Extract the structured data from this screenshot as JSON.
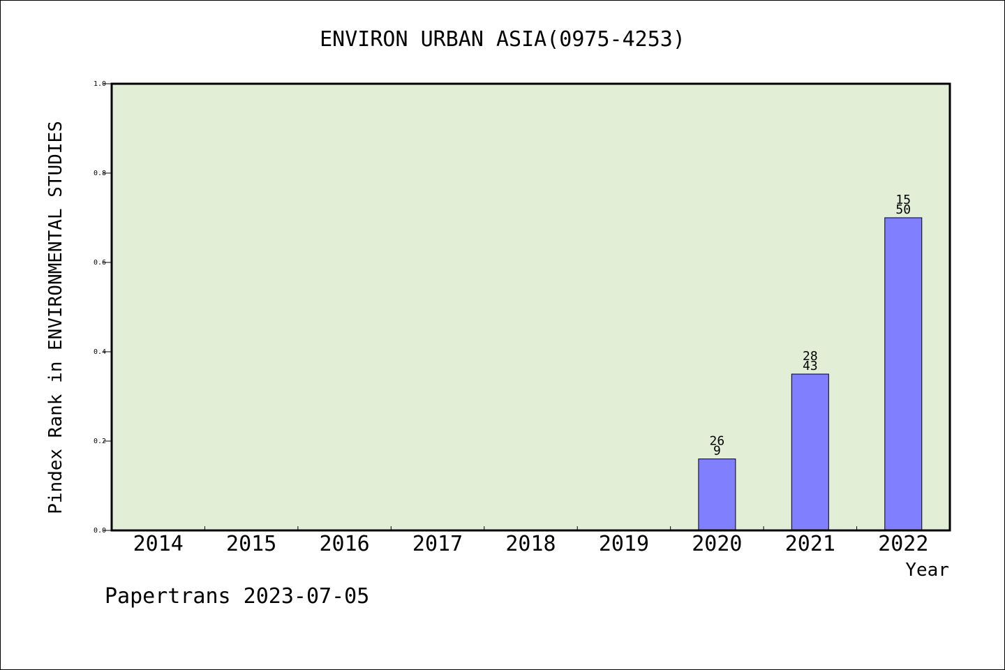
{
  "chart_data": {
    "type": "bar",
    "title": "ENVIRON URBAN ASIA(0975-4253)",
    "xlabel": "Year",
    "ylabel": "Pindex Rank in ENVIRONMENTAL STUDIES",
    "ylim": [
      0,
      1.0
    ],
    "yticks": [
      "0.0",
      "0.2",
      "0.4",
      "0.6",
      "0.8",
      "1.0"
    ],
    "categories": [
      "2014",
      "2015",
      "2016",
      "2017",
      "2018",
      "2019",
      "2020",
      "2021",
      "2022"
    ],
    "values": [
      0,
      0,
      0,
      0,
      0,
      0,
      0.16,
      0.35,
      0.7
    ],
    "labels": [
      null,
      null,
      null,
      null,
      null,
      null,
      [
        "26",
        "9"
      ],
      [
        "28",
        "43"
      ],
      [
        "15",
        "50"
      ]
    ],
    "grid": false,
    "background": "#e2efd6",
    "bar_color": "#8080ff"
  },
  "footer": "Papertrans 2023-07-05"
}
